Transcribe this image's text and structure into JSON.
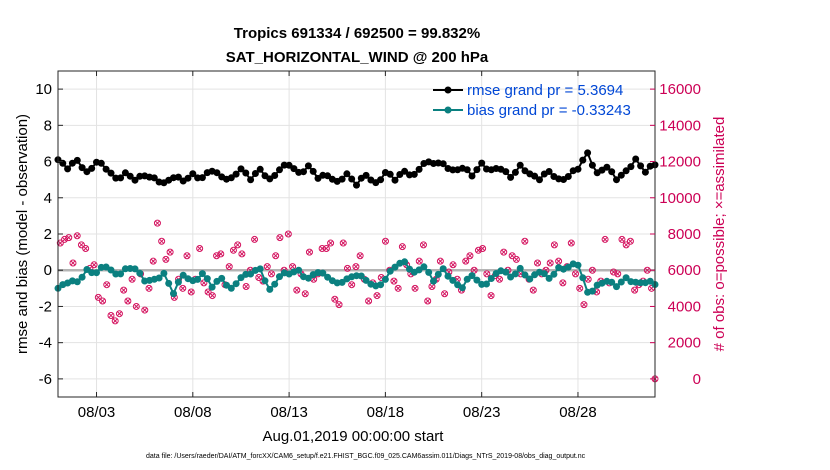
{
  "chart_data": {
    "type": "line",
    "title_line1": "Tropics 691334 / 692500 = 99.832%",
    "title_line2": "SAT_HORIZONTAL_WIND @ 200 hPa",
    "ylabel_left": "rmse and bias (model - observation)",
    "ylabel_right": "# of obs: o=possible; ×=assimilated",
    "xlabel": "Aug.01,2019 00:00:00 start",
    "footer": "data file: /Users/raeder/DAI/ATM_forcXX/CAM6_setup/f.e21.FHIST_BGC.f09_025.CAM6assim.011/Diags_NTrS_2019-08/obs_diag_output.nc",
    "xlim": [
      1,
      32
    ],
    "ylim_left": [
      -7,
      11
    ],
    "ylim_right": [
      -1000,
      17000
    ],
    "grid": true,
    "legend_position": "top-right",
    "x_ticks": [
      3,
      8,
      13,
      18,
      23,
      28
    ],
    "x_tick_labels": [
      "08/03",
      "08/08",
      "08/13",
      "08/18",
      "08/23",
      "08/28"
    ],
    "y_ticks_left": [
      -6,
      -4,
      -2,
      0,
      2,
      4,
      6,
      8,
      10
    ],
    "y_tick_labels_left": [
      "-6",
      "-4",
      "-2",
      "0",
      "2",
      "4",
      "6",
      "8",
      "10"
    ],
    "y_ticks_right": [
      0,
      2000,
      4000,
      6000,
      8000,
      10000,
      12000,
      14000,
      16000
    ],
    "y_tick_labels_right": [
      "0",
      "2000",
      "4000",
      "6000",
      "8000",
      "10000",
      "12000",
      "14000",
      "16000"
    ],
    "rmse_anchor_x": [
      1,
      1.5,
      2,
      2.5,
      3,
      3.5,
      4,
      4.5,
      5,
      5.5,
      6,
      6.5,
      7,
      7.5,
      8,
      8.5,
      9,
      9.5,
      10,
      10.5,
      11,
      11.5,
      12,
      12.5,
      13,
      13.5,
      14,
      14.5,
      15,
      15.5,
      16,
      16.5,
      17,
      17.5,
      18,
      18.5,
      19,
      19.5,
      20,
      20.5,
      21,
      21.5,
      22,
      22.5,
      23,
      23.5,
      24,
      24.5,
      25,
      25.5,
      26,
      26.5,
      27,
      27.5,
      28,
      28.5,
      29,
      29.5,
      30,
      30.5,
      31,
      31.5,
      32
    ],
    "rmse_anchor_y": [
      6.1,
      5.7,
      6.0,
      5.4,
      6.0,
      5.6,
      5.1,
      5.3,
      5.0,
      5.3,
      5.0,
      4.8,
      5.2,
      4.9,
      5.3,
      5.1,
      5.5,
      5.2,
      5.0,
      5.6,
      5.1,
      5.5,
      5.0,
      5.6,
      5.8,
      5.4,
      5.7,
      5.1,
      5.3,
      4.8,
      5.3,
      4.8,
      5.2,
      4.8,
      5.4,
      5.0,
      5.5,
      5.2,
      5.9,
      6.0,
      5.8,
      5.5,
      5.7,
      5.2,
      5.9,
      5.5,
      5.6,
      5.2,
      5.7,
      5.3,
      5.1,
      5.4,
      5.0,
      5.2,
      5.6,
      6.5,
      5.3,
      5.7,
      5.1,
      5.4,
      6.1,
      5.5,
      5.8
    ],
    "bias_anchor_x": [
      1,
      1.5,
      2,
      2.5,
      3,
      3.5,
      4,
      4.5,
      5,
      5.5,
      6,
      6.5,
      7,
      7.5,
      8,
      8.5,
      9,
      9.5,
      10,
      10.5,
      11,
      11.5,
      12,
      12.5,
      13,
      13.5,
      14,
      14.5,
      15,
      15.5,
      16,
      16.5,
      17,
      17.5,
      18,
      18.5,
      19,
      19.5,
      20,
      20.5,
      21,
      21.5,
      22,
      22.5,
      23,
      23.5,
      24,
      24.5,
      25,
      25.5,
      26,
      26.5,
      27,
      27.5,
      28,
      28.5,
      29,
      29.5,
      30,
      30.5,
      31,
      31.5,
      32
    ],
    "bias_anchor_y": [
      -1.0,
      -0.6,
      -0.7,
      0.0,
      -0.1,
      0.2,
      -0.2,
      0.0,
      0.1,
      -0.5,
      -0.6,
      -0.2,
      -1.2,
      -0.3,
      -0.6,
      -0.2,
      -0.9,
      -0.4,
      -1.1,
      -0.4,
      -0.1,
      0.0,
      -1.1,
      -0.3,
      -0.2,
      0.0,
      -0.5,
      -0.1,
      -0.3,
      -0.8,
      -0.5,
      -0.2,
      -0.6,
      -0.9,
      -0.5,
      0.2,
      0.5,
      -0.2,
      0.2,
      -0.5,
      0.0,
      -0.6,
      -0.9,
      -0.3,
      -0.8,
      -0.5,
      0.0,
      -0.3,
      0.0,
      -0.5,
      0.0,
      -0.5,
      0.1,
      0.2,
      0.3,
      -1.2,
      -0.9,
      -0.6,
      -0.8,
      -0.5,
      -0.7,
      -0.6,
      -0.8
    ],
    "obs_possible": [
      7500,
      7700,
      7800,
      6400,
      7900,
      7400,
      7200,
      6100,
      6300,
      4500,
      4300,
      5200,
      3500,
      3200,
      3600,
      4900,
      4300,
      5500,
      4000,
      5800,
      3800,
      5000,
      6500,
      8600,
      7600,
      6600,
      7000,
      4500,
      5500,
      5000,
      6800,
      4800,
      5500,
      7200,
      5300,
      4800,
      4600,
      6800,
      6900,
      5200,
      6200,
      7100,
      7400,
      6900,
      5100,
      6000,
      7700,
      5600,
      5400,
      6200,
      5800,
      6800,
      7800,
      6000,
      8000,
      6200,
      4900,
      5800,
      4700,
      7000,
      5500,
      5800,
      7200,
      7200,
      7500,
      4400,
      4100,
      7500,
      6100,
      5200,
      6200,
      6800,
      5500,
      4300,
      5300,
      4600,
      5600,
      7600,
      6000,
      5400,
      5000,
      7300,
      6300,
      5800,
      5000,
      6500,
      7400,
      4300,
      5100,
      5500,
      6500,
      4700,
      5900,
      6300,
      5500,
      4900,
      6500,
      6800,
      6000,
      7100,
      7200,
      5800,
      4600,
      5700,
      5500,
      7000,
      6000,
      6800,
      6600,
      5800,
      7600,
      5500,
      4900,
      6400,
      5800,
      6000,
      6400,
      7400,
      6500,
      5300,
      6200,
      7500,
      5800,
      5000,
      4100,
      5500,
      6000,
      4800,
      5400,
      7700,
      5300,
      5900,
      5800,
      7700,
      7400,
      7600,
      4900,
      5200,
      5400,
      6000,
      5000
    ],
    "obs_zero_marker_x": 32
  },
  "legend": {
    "rmse_label": "rmse grand pr = 5.3694",
    "bias_label": "bias grand pr = -0.33243"
  },
  "colors": {
    "rmse": "#000000",
    "bias": "#0b8080",
    "obs": "#d4135f",
    "zero_line": "#b4b4b4",
    "grid": "#e3e3e3",
    "legend_text": "#0047d6"
  }
}
